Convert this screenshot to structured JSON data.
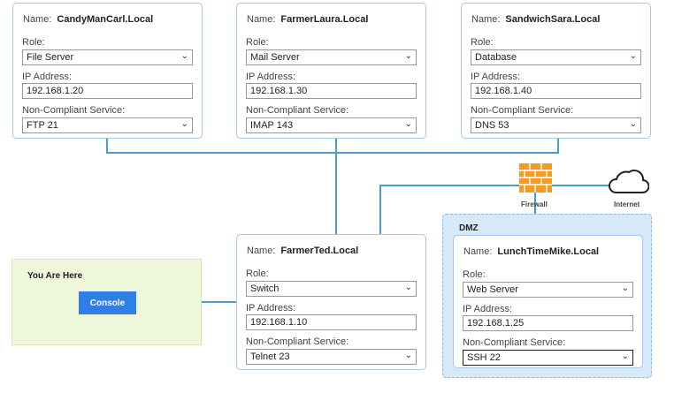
{
  "labels": {
    "name": "Name:",
    "role": "Role:",
    "ip": "IP Address:",
    "service": "Non-Compliant Service:"
  },
  "hosts": [
    {
      "name": "CandyManCarl.Local",
      "role": "File Server",
      "ip": "192.168.1.20",
      "service": "FTP 21"
    },
    {
      "name": "FarmerLaura.Local",
      "role": "Mail Server",
      "ip": "192.168.1.30",
      "service": "IMAP 143"
    },
    {
      "name": "SandwichSara.Local",
      "role": "Database",
      "ip": "192.168.1.40",
      "service": "DNS 53"
    },
    {
      "name": "FarmerTed.Local",
      "role": "Switch",
      "ip": "192.168.1.10",
      "service": "Telnet 23"
    },
    {
      "name": "LunchTimeMike.Local",
      "role": "Web Server",
      "ip": "192.168.1.25",
      "service": "SSH 22"
    }
  ],
  "dmz": {
    "title": "DMZ"
  },
  "you_are_here": {
    "title": "You Are Here",
    "button": "Console"
  },
  "network": {
    "firewall_label": "Firewall",
    "internet_label": "Internet"
  },
  "colors": {
    "link": "#4a9ad4",
    "firewall": "#f39c1f",
    "console": "#2f7fe8",
    "dmz": "#d6e9f8",
    "here": "#eef6dc"
  }
}
